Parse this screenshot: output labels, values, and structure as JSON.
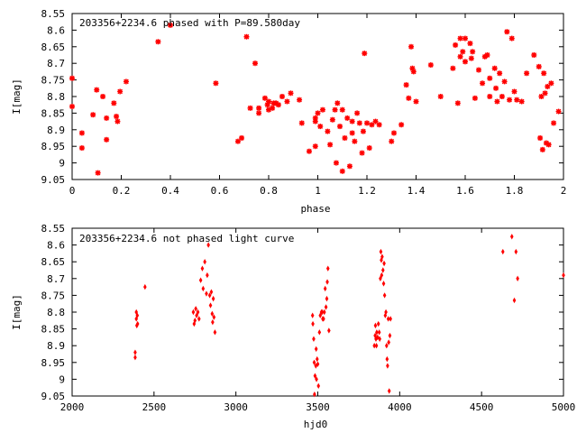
{
  "chart_data": [
    {
      "type": "scatter",
      "title": "203356+2234.6 phased with P=89.580day",
      "xlabel": "phase",
      "ylabel": "I[mag]",
      "xlim": [
        0,
        2
      ],
      "ylim": [
        9.05,
        8.55
      ],
      "y_inverted": true,
      "grid": false,
      "marker": "star",
      "color": "#ff0000",
      "x_ticks": [
        0,
        0.2,
        0.4,
        0.6,
        0.8,
        1,
        1.2,
        1.4,
        1.6,
        1.8,
        2
      ],
      "x_tick_labels": [
        "0",
        "0.2",
        "0.4",
        "0.6",
        "0.8",
        "1",
        "1.2",
        "1.4",
        "1.6",
        "1.8",
        "2"
      ],
      "y_ticks": [
        8.55,
        8.6,
        8.65,
        8.7,
        8.75,
        8.8,
        8.85,
        8.9,
        8.95,
        9,
        9.05
      ],
      "y_tick_labels": [
        "8.55",
        "8.6",
        "8.65",
        "8.7",
        "8.75",
        "8.8",
        "8.85",
        "8.9",
        "8.95",
        "9",
        "9.05"
      ],
      "points": [
        [
          0.0,
          8.745
        ],
        [
          0.0,
          8.83
        ],
        [
          0.04,
          8.955
        ],
        [
          0.04,
          8.91
        ],
        [
          0.085,
          8.855
        ],
        [
          0.1,
          8.78
        ],
        [
          0.105,
          9.03
        ],
        [
          0.125,
          8.8
        ],
        [
          0.14,
          8.865
        ],
        [
          0.14,
          8.93
        ],
        [
          0.17,
          8.82
        ],
        [
          0.18,
          8.86
        ],
        [
          0.185,
          8.875
        ],
        [
          0.195,
          8.785
        ],
        [
          0.22,
          8.755
        ],
        [
          0.35,
          8.635
        ],
        [
          0.4,
          8.585
        ],
        [
          0.585,
          8.76
        ],
        [
          0.675,
          8.935
        ],
        [
          0.69,
          8.925
        ],
        [
          0.71,
          8.62
        ],
        [
          0.725,
          8.835
        ],
        [
          0.745,
          8.7
        ],
        [
          0.76,
          8.835
        ],
        [
          0.76,
          8.85
        ],
        [
          0.785,
          8.805
        ],
        [
          0.795,
          8.825
        ],
        [
          0.8,
          8.815
        ],
        [
          0.8,
          8.84
        ],
        [
          0.815,
          8.835
        ],
        [
          0.82,
          8.82
        ],
        [
          0.83,
          8.82
        ],
        [
          0.84,
          8.825
        ],
        [
          0.855,
          8.8
        ],
        [
          0.875,
          8.815
        ],
        [
          0.89,
          8.79
        ],
        [
          0.925,
          8.81
        ],
        [
          0.935,
          8.88
        ],
        [
          0.965,
          8.965
        ],
        [
          0.99,
          8.865
        ],
        [
          0.99,
          8.875
        ],
        [
          0.99,
          8.95
        ],
        [
          1.0,
          8.85
        ],
        [
          1.01,
          8.89
        ],
        [
          1.02,
          8.84
        ],
        [
          1.04,
          8.905
        ],
        [
          1.05,
          8.945
        ],
        [
          1.06,
          8.87
        ],
        [
          1.07,
          8.84
        ],
        [
          1.075,
          9.0
        ],
        [
          1.08,
          8.82
        ],
        [
          1.09,
          8.89
        ],
        [
          1.1,
          9.025
        ],
        [
          1.1,
          8.84
        ],
        [
          1.11,
          8.925
        ],
        [
          1.12,
          8.865
        ],
        [
          1.13,
          9.01
        ],
        [
          1.14,
          8.875
        ],
        [
          1.14,
          8.91
        ],
        [
          1.15,
          8.935
        ],
        [
          1.16,
          8.85
        ],
        [
          1.17,
          8.88
        ],
        [
          1.18,
          8.97
        ],
        [
          1.185,
          8.905
        ],
        [
          1.19,
          8.67
        ],
        [
          1.2,
          8.88
        ],
        [
          1.21,
          8.955
        ],
        [
          1.22,
          8.885
        ],
        [
          1.235,
          8.875
        ],
        [
          1.25,
          8.885
        ],
        [
          1.3,
          8.935
        ],
        [
          1.31,
          8.91
        ],
        [
          1.34,
          8.885
        ],
        [
          1.36,
          8.765
        ],
        [
          1.37,
          8.805
        ],
        [
          1.38,
          8.65
        ],
        [
          1.385,
          8.715
        ],
        [
          1.39,
          8.725
        ],
        [
          1.4,
          8.815
        ],
        [
          1.46,
          8.705
        ],
        [
          1.5,
          8.8
        ],
        [
          1.55,
          8.715
        ],
        [
          1.56,
          8.645
        ],
        [
          1.57,
          8.82
        ],
        [
          1.58,
          8.68
        ],
        [
          1.58,
          8.625
        ],
        [
          1.59,
          8.665
        ],
        [
          1.6,
          8.695
        ],
        [
          1.6,
          8.625
        ],
        [
          1.62,
          8.64
        ],
        [
          1.625,
          8.685
        ],
        [
          1.63,
          8.665
        ],
        [
          1.64,
          8.805
        ],
        [
          1.655,
          8.72
        ],
        [
          1.67,
          8.76
        ],
        [
          1.68,
          8.68
        ],
        [
          1.69,
          8.675
        ],
        [
          1.7,
          8.8
        ],
        [
          1.7,
          8.745
        ],
        [
          1.72,
          8.715
        ],
        [
          1.725,
          8.775
        ],
        [
          1.73,
          8.815
        ],
        [
          1.74,
          8.73
        ],
        [
          1.75,
          8.8
        ],
        [
          1.76,
          8.755
        ],
        [
          1.77,
          8.605
        ],
        [
          1.78,
          8.81
        ],
        [
          1.79,
          8.625
        ],
        [
          1.8,
          8.785
        ],
        [
          1.81,
          8.81
        ],
        [
          1.83,
          8.815
        ],
        [
          1.85,
          8.73
        ],
        [
          1.88,
          8.675
        ],
        [
          1.9,
          8.71
        ],
        [
          1.905,
          8.925
        ],
        [
          1.91,
          8.8
        ],
        [
          1.915,
          8.96
        ],
        [
          1.92,
          8.73
        ],
        [
          1.925,
          8.79
        ],
        [
          1.93,
          8.94
        ],
        [
          1.935,
          8.77
        ],
        [
          1.94,
          8.945
        ],
        [
          1.95,
          8.76
        ],
        [
          1.96,
          8.88
        ],
        [
          1.98,
          8.845
        ]
      ]
    },
    {
      "type": "scatter",
      "title": "203356+2234.6 not phased light curve",
      "xlabel": "hjd0",
      "ylabel": "I[mag]",
      "xlim": [
        2000,
        5000
      ],
      "ylim": [
        9.05,
        8.55
      ],
      "y_inverted": true,
      "grid": false,
      "marker": "diamond",
      "color": "#ff0000",
      "x_ticks": [
        2000,
        2500,
        3000,
        3500,
        4000,
        4500,
        5000
      ],
      "x_tick_labels": [
        "2000",
        "2500",
        "3000",
        "3500",
        "4000",
        "4500",
        "5000"
      ],
      "y_ticks": [
        8.55,
        8.6,
        8.65,
        8.7,
        8.75,
        8.8,
        8.85,
        8.9,
        8.95,
        9,
        9.05
      ],
      "y_tick_labels": [
        "8.55",
        "8.6",
        "8.65",
        "8.7",
        "8.75",
        "8.8",
        "8.85",
        "8.9",
        "8.95",
        "9",
        "9.05"
      ],
      "points": [
        [
          2385,
          8.92
        ],
        [
          2385,
          8.935
        ],
        [
          2392,
          8.8
        ],
        [
          2392,
          8.82
        ],
        [
          2395,
          8.84
        ],
        [
          2398,
          8.81
        ],
        [
          2400,
          8.835
        ],
        [
          2445,
          8.725
        ],
        [
          2740,
          8.8
        ],
        [
          2745,
          8.835
        ],
        [
          2750,
          8.825
        ],
        [
          2755,
          8.79
        ],
        [
          2760,
          8.81
        ],
        [
          2768,
          8.8
        ],
        [
          2775,
          8.82
        ],
        [
          2785,
          8.705
        ],
        [
          2795,
          8.67
        ],
        [
          2800,
          8.73
        ],
        [
          2810,
          8.65
        ],
        [
          2820,
          8.745
        ],
        [
          2825,
          8.69
        ],
        [
          2832,
          8.6
        ],
        [
          2840,
          8.75
        ],
        [
          2845,
          8.78
        ],
        [
          2850,
          8.74
        ],
        [
          2855,
          8.805
        ],
        [
          2858,
          8.83
        ],
        [
          2862,
          8.76
        ],
        [
          2866,
          8.815
        ],
        [
          2872,
          8.86
        ],
        [
          3468,
          8.81
        ],
        [
          3470,
          8.835
        ],
        [
          3475,
          8.88
        ],
        [
          3478,
          8.95
        ],
        [
          3480,
          9.045
        ],
        [
          3483,
          8.99
        ],
        [
          3488,
          8.96
        ],
        [
          3490,
          8.91
        ],
        [
          3492,
          9.0
        ],
        [
          3496,
          8.94
        ],
        [
          3500,
          8.955
        ],
        [
          3504,
          9.02
        ],
        [
          3510,
          8.86
        ],
        [
          3515,
          8.81
        ],
        [
          3522,
          8.8
        ],
        [
          3527,
          8.8
        ],
        [
          3530,
          8.82
        ],
        [
          3535,
          8.82
        ],
        [
          3540,
          8.8
        ],
        [
          3545,
          8.73
        ],
        [
          3550,
          8.785
        ],
        [
          3555,
          8.76
        ],
        [
          3558,
          8.71
        ],
        [
          3562,
          8.67
        ],
        [
          3568,
          8.855
        ],
        [
          3845,
          8.9
        ],
        [
          3850,
          8.87
        ],
        [
          3852,
          8.84
        ],
        [
          3855,
          8.88
        ],
        [
          3858,
          8.9
        ],
        [
          3860,
          8.86
        ],
        [
          3865,
          8.875
        ],
        [
          3870,
          8.835
        ],
        [
          3875,
          8.86
        ],
        [
          3878,
          8.88
        ],
        [
          3882,
          8.7
        ],
        [
          3885,
          8.62
        ],
        [
          3888,
          8.645
        ],
        [
          3890,
          8.69
        ],
        [
          3893,
          8.635
        ],
        [
          3898,
          8.675
        ],
        [
          3902,
          8.715
        ],
        [
          3905,
          8.655
        ],
        [
          3908,
          8.75
        ],
        [
          3912,
          8.81
        ],
        [
          3916,
          8.8
        ],
        [
          3920,
          8.9
        ],
        [
          3923,
          8.94
        ],
        [
          3926,
          8.96
        ],
        [
          3930,
          8.82
        ],
        [
          3933,
          8.89
        ],
        [
          3936,
          9.035
        ],
        [
          3940,
          8.87
        ],
        [
          3944,
          8.82
        ],
        [
          4630,
          8.62
        ],
        [
          4685,
          8.575
        ],
        [
          4700,
          8.765
        ],
        [
          4710,
          8.62
        ],
        [
          4720,
          8.7
        ],
        [
          5000,
          8.69
        ]
      ]
    }
  ]
}
